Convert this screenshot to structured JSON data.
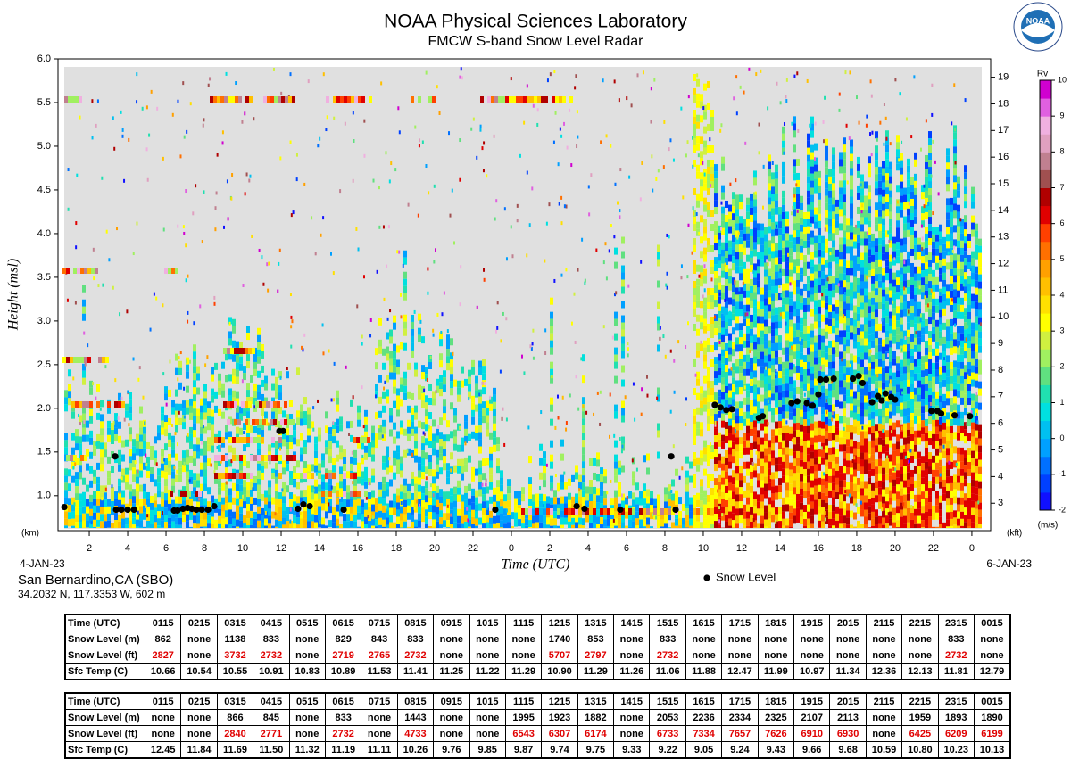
{
  "chart_data": {
    "type": "scatter",
    "title": "NOAA Physical Sciences Laboratory",
    "subtitle": "FMCW S-band Snow Level Radar",
    "logo": "NOAA",
    "y_label": "Height (msl)",
    "x_label": "Time (UTC)",
    "y_unit": "(km)",
    "y2_unit": "(kft)",
    "x_start_label": "4-JAN-23",
    "x_end_label": "6-JAN-23",
    "xlim": [
      0.37,
      48.98
    ],
    "xticks": [
      2,
      4,
      6,
      8,
      10,
      12,
      14,
      16,
      18,
      20,
      22,
      {
        "value": 24,
        "label": "0"
      },
      {
        "value": 26,
        "label": "2"
      },
      {
        "value": 28,
        "label": "4"
      },
      {
        "value": 30,
        "label": "6"
      },
      {
        "value": 32,
        "label": "8"
      },
      {
        "value": 34,
        "label": "10"
      },
      {
        "value": 36,
        "label": "12"
      },
      {
        "value": 38,
        "label": "14"
      },
      {
        "value": 40,
        "label": "16"
      },
      {
        "value": 42,
        "label": "18"
      },
      {
        "value": 44,
        "label": "20"
      },
      {
        "value": 46,
        "label": "22"
      },
      {
        "value": 48,
        "label": "0"
      }
    ],
    "ylim": [
      0.6,
      6.0
    ],
    "yticks": [
      {
        "value": 1,
        "label": "1.0"
      },
      1.5,
      {
        "value": 2,
        "label": "2.0"
      },
      2.5,
      {
        "value": 3,
        "label": "3.0"
      },
      3.5,
      {
        "value": 4,
        "label": "4.0"
      },
      4.5,
      {
        "value": 5,
        "label": "5.0"
      },
      5.5,
      {
        "value": 6,
        "label": "6.0"
      }
    ],
    "y2lim": [
      1.97,
      19.69
    ],
    "y2ticks": [
      3,
      4,
      5,
      6,
      7,
      8,
      9,
      10,
      11,
      12,
      13,
      14,
      15,
      16,
      17,
      18,
      19
    ],
    "legend": "bottom",
    "series": [
      {
        "name": "Snow Level",
        "color": "#000000",
        "x": [
          0.7,
          3.35,
          3.4,
          3.67,
          4.0,
          4.33,
          6.42,
          6.6,
          6.88,
          7.12,
          7.35,
          7.58,
          7.86,
          8.19,
          8.51,
          11.91,
          12.1,
          12.88,
          13.16,
          13.49,
          15.26,
          23.16,
          27.4,
          27.81,
          29.67,
          32.33,
          32.56,
          34.6,
          34.9,
          35.2,
          35.5,
          36.9,
          37.1,
          38.6,
          38.9,
          39.4,
          39.7,
          40.0,
          40.1,
          40.4,
          40.8,
          41.8,
          42.1,
          42.3,
          42.8,
          43.1,
          43.3,
          43.5,
          43.8,
          44.0,
          45.9,
          46.2,
          46.4,
          47.1,
          47.9
        ],
        "values": [
          0.87,
          1.45,
          0.84,
          0.84,
          0.84,
          0.84,
          0.83,
          0.83,
          0.85,
          0.86,
          0.85,
          0.84,
          0.84,
          0.84,
          0.88,
          1.74,
          1.74,
          0.85,
          0.9,
          0.88,
          0.84,
          0.84,
          0.88,
          0.85,
          0.84,
          1.45,
          0.84,
          2.04,
          2.01,
          1.98,
          1.99,
          1.89,
          1.91,
          2.06,
          2.08,
          2.06,
          2.03,
          2.16,
          2.33,
          2.33,
          2.34,
          2.34,
          2.37,
          2.29,
          2.07,
          2.14,
          2.09,
          2.17,
          2.13,
          2.1,
          1.97,
          1.97,
          1.94,
          1.92,
          1.91
        ]
      }
    ],
    "colorbar": {
      "label": "Rv",
      "unit": "(m/s)",
      "lim": [
        -2,
        10
      ],
      "ticks": [
        -2,
        -1,
        0,
        1,
        2,
        3,
        4,
        5,
        6,
        7,
        8,
        9,
        10
      ],
      "colors": [
        "#1010ff",
        "#0040ff",
        "#0070ff",
        "#00a0ff",
        "#00c0f0",
        "#00e0e0",
        "#20e0b0",
        "#60e080",
        "#a0f060",
        "#d0f040",
        "#ffff00",
        "#ffe000",
        "#ffc000",
        "#ffa000",
        "#ff7000",
        "#ff4000",
        "#e00000",
        "#b00000",
        "#a05050",
        "#c08090",
        "#e0a0c0",
        "#f0b0e0",
        "#e060e0",
        "#d000d0"
      ]
    }
  },
  "station": {
    "name": "San Bernardino,CA (SBO)",
    "coords": "34.2032 N, 117.3353 W, 602 m"
  },
  "tables": [
    {
      "rows": [
        [
          "Time (UTC)",
          "0115",
          "0215",
          "0315",
          "0415",
          "0515",
          "0615",
          "0715",
          "0815",
          "0915",
          "1015",
          "1115",
          "1215",
          "1315",
          "1415",
          "1515",
          "1615",
          "1715",
          "1815",
          "1915",
          "2015",
          "2115",
          "2215",
          "2315",
          "0015"
        ],
        [
          "Snow Level (m)",
          "862",
          "none",
          "1138",
          "833",
          "none",
          "829",
          "843",
          "833",
          "none",
          "none",
          "none",
          "1740",
          "853",
          "none",
          "833",
          "none",
          "none",
          "none",
          "none",
          "none",
          "none",
          "none",
          "833",
          "none"
        ],
        [
          "Snow Level (ft)",
          "2827",
          "none",
          "3732",
          "2732",
          "none",
          "2719",
          "2765",
          "2732",
          "none",
          "none",
          "none",
          "5707",
          "2797",
          "none",
          "2732",
          "none",
          "none",
          "none",
          "none",
          "none",
          "none",
          "none",
          "2732",
          "none"
        ],
        [
          "Sfc Temp (C)",
          "10.66",
          "10.54",
          "10.55",
          "10.91",
          "10.83",
          "10.89",
          "11.53",
          "11.41",
          "11.25",
          "11.22",
          "11.29",
          "10.90",
          "11.29",
          "11.26",
          "11.06",
          "11.88",
          "12.47",
          "11.99",
          "10.97",
          "11.34",
          "12.36",
          "12.13",
          "11.81",
          "12.79"
        ]
      ]
    },
    {
      "rows": [
        [
          "Time (UTC)",
          "0115",
          "0215",
          "0315",
          "0415",
          "0515",
          "0615",
          "0715",
          "0815",
          "0915",
          "1015",
          "1115",
          "1215",
          "1315",
          "1415",
          "1515",
          "1615",
          "1715",
          "1815",
          "1915",
          "2015",
          "2115",
          "2215",
          "2315",
          "0015"
        ],
        [
          "Snow Level (m)",
          "none",
          "none",
          "866",
          "845",
          "none",
          "833",
          "none",
          "1443",
          "none",
          "none",
          "1995",
          "1923",
          "1882",
          "none",
          "2053",
          "2236",
          "2334",
          "2325",
          "2107",
          "2113",
          "none",
          "1959",
          "1893",
          "1890"
        ],
        [
          "Snow Level (ft)",
          "none",
          "none",
          "2840",
          "2771",
          "none",
          "2732",
          "none",
          "4733",
          "none",
          "none",
          "6543",
          "6307",
          "6174",
          "none",
          "6733",
          "7334",
          "7657",
          "7626",
          "6910",
          "6930",
          "none",
          "6425",
          "6209",
          "6199"
        ],
        [
          "Sfc Temp (C)",
          "12.45",
          "11.84",
          "11.69",
          "11.50",
          "11.32",
          "11.19",
          "11.11",
          "10.26",
          "9.76",
          "9.85",
          "9.87",
          "9.74",
          "9.75",
          "9.33",
          "9.22",
          "9.05",
          "9.24",
          "9.43",
          "9.66",
          "9.68",
          "10.59",
          "10.80",
          "10.23",
          "10.13"
        ]
      ]
    }
  ]
}
